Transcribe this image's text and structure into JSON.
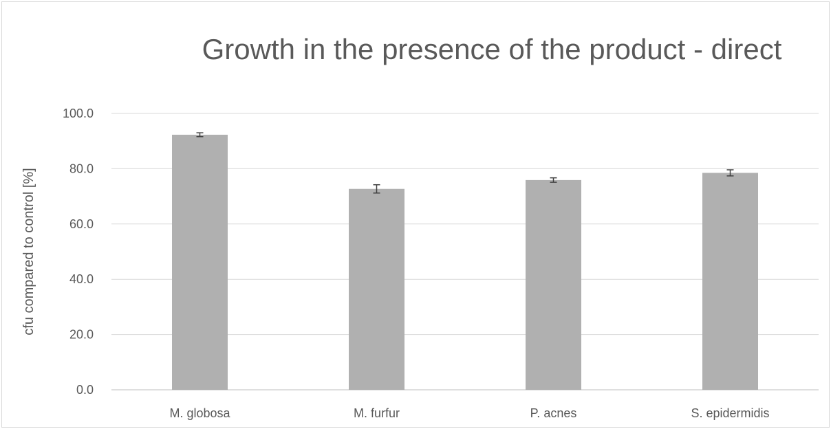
{
  "chart_data": {
    "type": "bar",
    "title": "Growth in the presence of the product - direct",
    "xlabel": "",
    "ylabel": "cfu compared to control [%]",
    "ylim": [
      0,
      100
    ],
    "yticks": [
      "0.0",
      "20.0",
      "40.0",
      "60.0",
      "80.0",
      "100.0"
    ],
    "grid": true,
    "legend": "none",
    "categories": [
      "M. globosa",
      "M. furfur",
      "P. acnes",
      "S. epidermidis"
    ],
    "series": [
      {
        "values": [
          92.3,
          72.7,
          75.9,
          78.5
        ],
        "error": [
          0.7,
          1.5,
          0.8,
          1.1
        ],
        "color": "#b0b0b0"
      }
    ],
    "colors": {
      "bar": "#b0b0b0",
      "grid": "#d9d9d9",
      "text": "#595959",
      "error_bar": "#404040"
    }
  }
}
